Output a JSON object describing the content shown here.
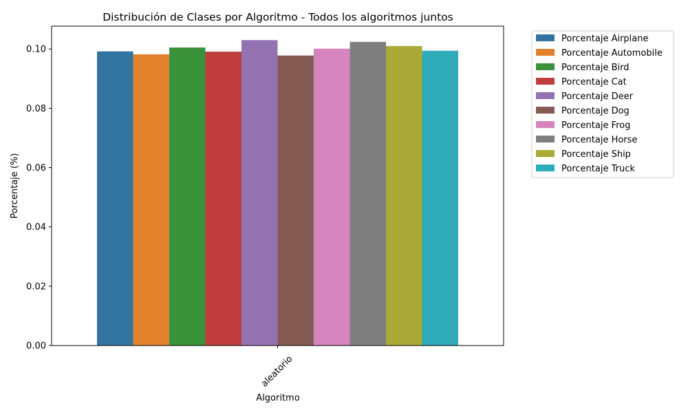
{
  "chart_data": {
    "type": "bar",
    "title": "Distribución de Clases por Algoritmo - Todos los algoritmos juntos",
    "xlabel": "Algoritmo",
    "ylabel": "Porcentaje (%)",
    "categories": [
      "aleatorio"
    ],
    "ylim": [
      0,
      0.1077
    ],
    "yticks": [
      "0.00",
      "0.02",
      "0.04",
      "0.06",
      "0.08",
      "0.10"
    ],
    "grid": false,
    "legend_position": "outside-top-right",
    "series": [
      {
        "name": "Porcentaje Airplane",
        "color": "#3274a1",
        "values": [
          0.0992
        ]
      },
      {
        "name": "Porcentaje Automobile",
        "color": "#e1812c",
        "values": [
          0.0982
        ]
      },
      {
        "name": "Porcentaje Bird",
        "color": "#3a923a",
        "values": [
          0.1005
        ]
      },
      {
        "name": "Porcentaje Cat",
        "color": "#c03d3e",
        "values": [
          0.0991
        ]
      },
      {
        "name": "Porcentaje Deer",
        "color": "#9372b2",
        "values": [
          0.103
        ]
      },
      {
        "name": "Porcentaje Dog",
        "color": "#845b53",
        "values": [
          0.0978
        ]
      },
      {
        "name": "Porcentaje Frog",
        "color": "#d684bd",
        "values": [
          0.1001
        ]
      },
      {
        "name": "Porcentaje Horse",
        "color": "#7f7f7f",
        "values": [
          0.1024
        ]
      },
      {
        "name": "Porcentaje Ship",
        "color": "#a9aa35",
        "values": [
          0.101
        ]
      },
      {
        "name": "Porcentaje Truck",
        "color": "#2eabb8",
        "values": [
          0.0994
        ]
      }
    ]
  }
}
